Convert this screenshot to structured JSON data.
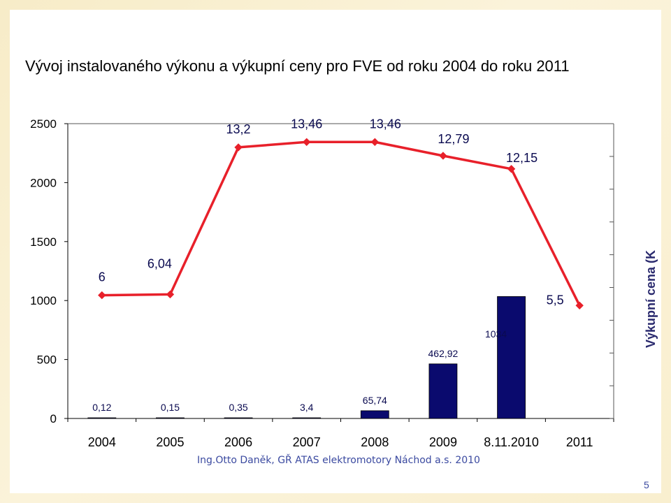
{
  "title": "Vývoj instalovaného výkonu a výkupní ceny pro FVE od roku 2004  do roku 2011",
  "footer": "Ing.Otto Daněk, GŘ ATAS elektromotory Náchod a.s. 2010",
  "page_number": "5",
  "chart_data": {
    "type": "bar",
    "categories": [
      "2004",
      "2005",
      "2006",
      "2007",
      "2008",
      "2009",
      "8.11.2010",
      "2011"
    ],
    "ylim": [
      0,
      2500
    ],
    "yticks": [
      "0",
      "500",
      "1000",
      "1500",
      "2000",
      "2500"
    ],
    "y2label": "Výkupní cena (K",
    "series": [
      {
        "type": "bar",
        "values": [
          0.12,
          0.15,
          0.35,
          3.4,
          65.74,
          462.92,
          1034,
          null
        ],
        "labels": [
          "0,12",
          "0,15",
          "0,35",
          "3,4",
          "65,74",
          "462,92",
          "1034",
          ""
        ],
        "color": "#0a0a6e"
      },
      {
        "type": "line",
        "values": [
          6,
          6.04,
          13.2,
          13.46,
          13.46,
          12.79,
          12.15,
          5.5
        ],
        "labels": [
          "6",
          "6,04",
          "13,2",
          "13,46",
          "13,46",
          "12,79",
          "12,15",
          "5,5"
        ],
        "color": "#e8202a"
      }
    ]
  }
}
